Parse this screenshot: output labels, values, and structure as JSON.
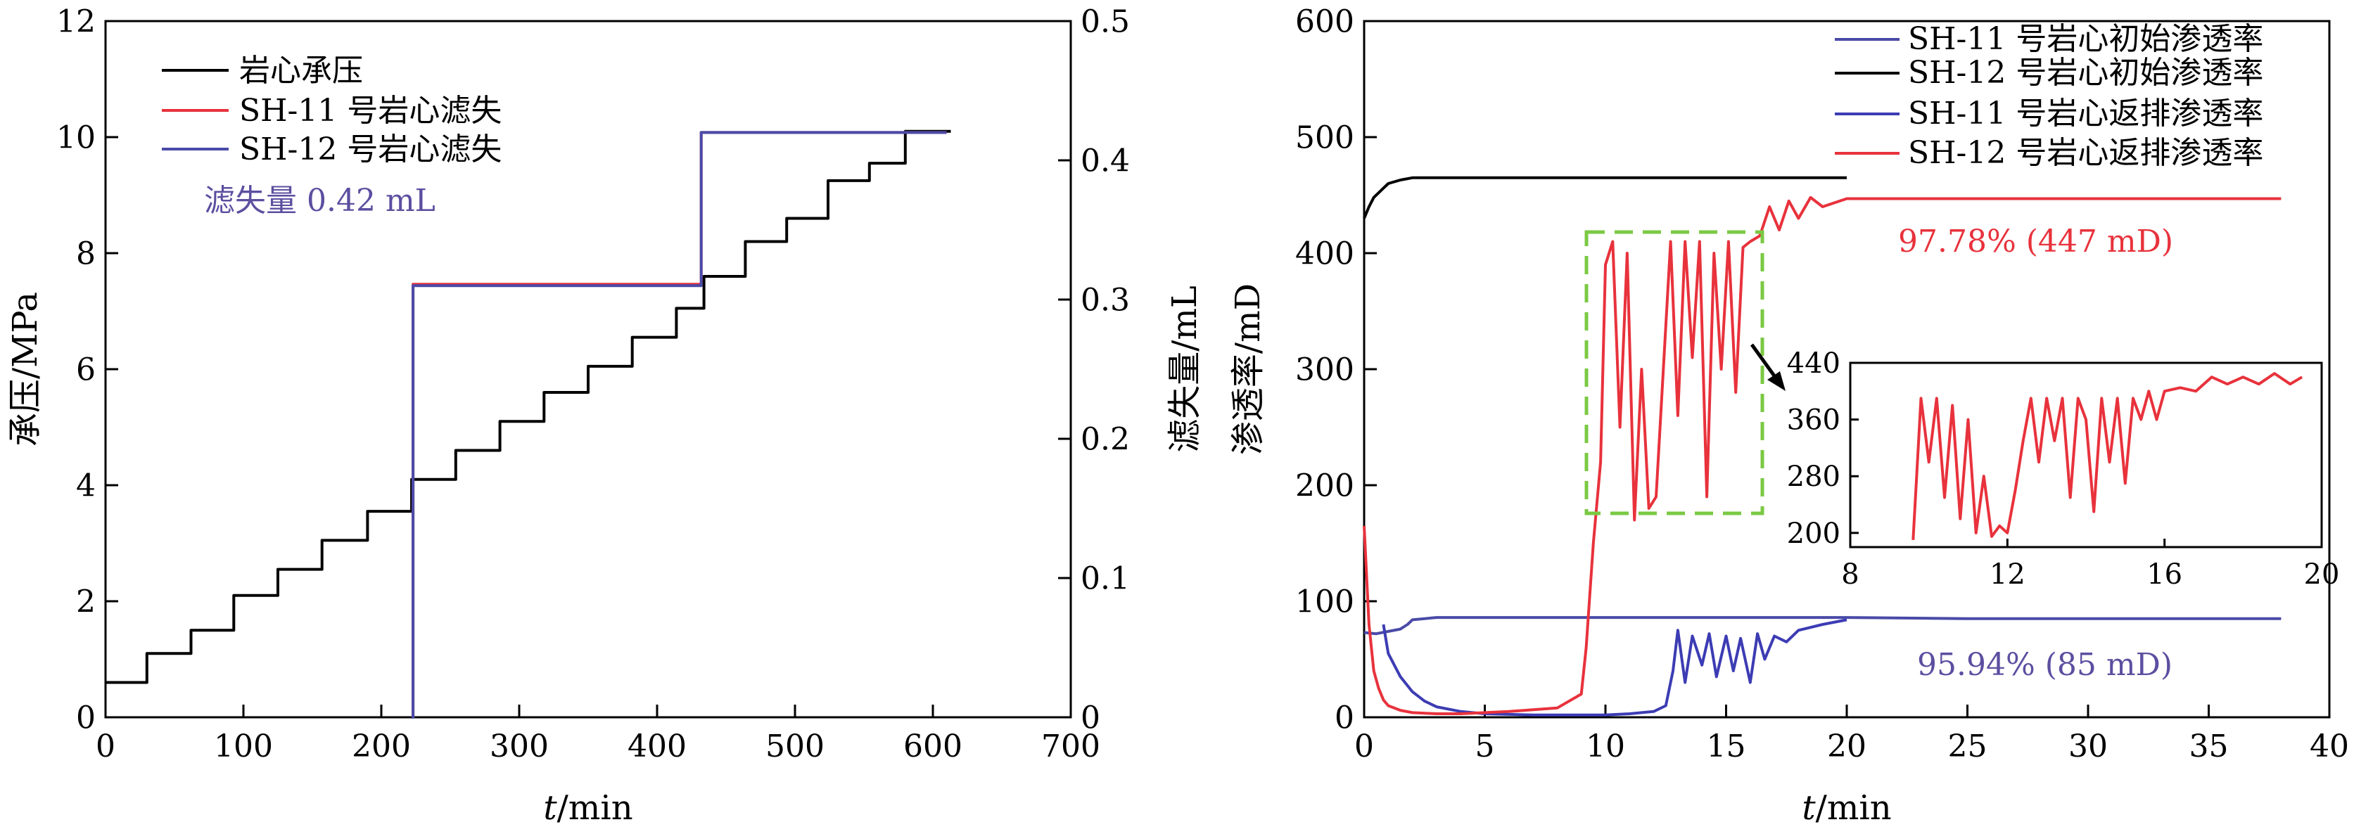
{
  "chart_data": [
    {
      "type": "line",
      "xlabel": "t/min",
      "ylabel": "承压/MPa",
      "y2label": "滤失量/mL",
      "xlim": [
        0,
        700
      ],
      "ylim": [
        0,
        12
      ],
      "y2lim": [
        0,
        0.5
      ],
      "xticks": [
        "0",
        "100",
        "200",
        "300",
        "400",
        "500",
        "600",
        "700"
      ],
      "yticks": [
        "0",
        "2",
        "4",
        "6",
        "8",
        "10",
        "12"
      ],
      "y2ticks": [
        "0",
        "0.1",
        "0.2",
        "0.3",
        "0.4",
        "0.5"
      ],
      "grid": false,
      "legend_position": "top-left",
      "annotation": "滤失量 0.42 mL",
      "annotation_color": "#5b4fa0",
      "series": [
        {
          "name": "岩心承压",
          "color": "#000000",
          "axis": "left",
          "x": [
            0,
            30,
            30,
            62,
            62,
            93,
            93,
            125,
            125,
            157,
            157,
            190,
            190,
            222,
            222,
            254,
            254,
            286,
            286,
            318,
            318,
            350,
            350,
            382,
            382,
            414,
            414,
            434,
            434,
            464,
            464,
            494,
            494,
            524,
            524,
            554,
            554,
            580,
            580,
            613
          ],
          "y": [
            0.6,
            0.6,
            1.1,
            1.1,
            1.5,
            1.5,
            2.1,
            2.1,
            2.55,
            2.55,
            3.05,
            3.05,
            3.55,
            3.55,
            4.1,
            4.1,
            4.6,
            4.6,
            5.1,
            5.1,
            5.6,
            5.6,
            6.05,
            6.05,
            6.55,
            6.55,
            7.05,
            7.05,
            7.6,
            7.6,
            8.2,
            8.2,
            8.6,
            8.6,
            9.25,
            9.25,
            9.55,
            9.55,
            10.1,
            10.1
          ]
        },
        {
          "name": "SH-11 号岩心滤失",
          "color": "#e8323c",
          "axis": "right",
          "x": [
            222,
            223,
            223,
            432,
            432,
            610
          ],
          "y": [
            0,
            0,
            0.311,
            0.311,
            0.42,
            0.42
          ]
        },
        {
          "name": "SH-12 号岩心滤失",
          "color": "#4a4aa8",
          "axis": "right",
          "x": [
            222,
            223,
            223,
            432,
            432,
            610
          ],
          "y": [
            0,
            0,
            0.31,
            0.31,
            0.42,
            0.42
          ]
        }
      ]
    },
    {
      "type": "line",
      "xlabel": "t/min",
      "ylabel": "渗透率/mD",
      "xlim": [
        0,
        40
      ],
      "ylim": [
        0,
        600
      ],
      "xticks": [
        "0",
        "5",
        "10",
        "15",
        "20",
        "25",
        "30",
        "35",
        "40"
      ],
      "yticks": [
        "0",
        "100",
        "200",
        "300",
        "400",
        "500",
        "600"
      ],
      "grid": false,
      "legend_position": "top-right",
      "annotations": [
        {
          "text": "97.78% (447 mD)",
          "color": "#e8323c"
        },
        {
          "text": "95.94% (85 mD)",
          "color": "#5b4fa0"
        }
      ],
      "series": [
        {
          "name": "SH-11 号岩心初始渗透率",
          "color": "#4a4aa8",
          "x": [
            0,
            0.5,
            1,
            1.5,
            1.8,
            2,
            3,
            4,
            6,
            10,
            15,
            20,
            25,
            30,
            38
          ],
          "y": [
            73,
            72,
            74,
            76,
            80,
            84,
            86,
            86,
            86,
            86,
            86,
            86,
            85,
            85,
            85
          ]
        },
        {
          "name": "SH-12 号岩心初始渗透率",
          "color": "#000000",
          "x": [
            0,
            0.2,
            0.4,
            0.6,
            0.8,
            1,
            1.5,
            2,
            5,
            10,
            15,
            20
          ],
          "y": [
            430,
            440,
            448,
            452,
            456,
            460,
            463,
            465,
            465,
            465,
            465,
            465
          ]
        },
        {
          "name": "SH-11 号岩心返排渗透率",
          "color": "#3c3cb4",
          "x": [
            0.8,
            1,
            1.5,
            2,
            2.5,
            3,
            4,
            5,
            7,
            9,
            10,
            11,
            12,
            12.5,
            12.8,
            13,
            13.3,
            13.6,
            14,
            14.3,
            14.6,
            15,
            15.3,
            15.6,
            16,
            16.3,
            16.6,
            17,
            17.5,
            18,
            19,
            20
          ],
          "y": [
            80,
            55,
            35,
            22,
            14,
            9,
            5,
            3,
            2,
            2,
            2,
            3,
            5,
            10,
            40,
            75,
            30,
            70,
            45,
            72,
            35,
            70,
            40,
            68,
            30,
            72,
            50,
            70,
            65,
            75,
            80,
            84
          ]
        },
        {
          "name": "SH-12 号岩心返排渗透率",
          "color": "#e8323c",
          "x": [
            0,
            0.2,
            0.4,
            0.6,
            0.8,
            1,
            1.5,
            2,
            3,
            4,
            6,
            8,
            9,
            9.2,
            9.5,
            9.8,
            10,
            10.3,
            10.6,
            10.9,
            11.2,
            11.5,
            11.8,
            12.1,
            12.4,
            12.7,
            13,
            13.3,
            13.6,
            13.9,
            14.2,
            14.5,
            14.8,
            15.1,
            15.4,
            15.7,
            16,
            16.4,
            16.8,
            17.2,
            17.6,
            18,
            18.5,
            19,
            20,
            25,
            30,
            38
          ],
          "y": [
            165,
            80,
            40,
            25,
            15,
            10,
            6,
            4,
            3,
            3,
            5,
            8,
            20,
            60,
            150,
            220,
            390,
            410,
            250,
            400,
            170,
            300,
            180,
            190,
            300,
            410,
            260,
            410,
            310,
            410,
            190,
            400,
            300,
            410,
            280,
            405,
            410,
            415,
            440,
            420,
            445,
            430,
            448,
            440,
            447,
            447,
            447,
            447
          ]
        }
      ],
      "inset": {
        "xlim": [
          8,
          20
        ],
        "ylim": [
          180,
          440
        ],
        "xticks": [
          "8",
          "12",
          "16",
          "20"
        ],
        "yticks": [
          "200",
          "280",
          "360",
          "440"
        ],
        "x": [
          9.6,
          9.8,
          10,
          10.2,
          10.4,
          10.6,
          10.8,
          11,
          11.2,
          11.4,
          11.6,
          11.8,
          12,
          12.2,
          12.4,
          12.6,
          12.8,
          13,
          13.2,
          13.4,
          13.6,
          13.8,
          14,
          14.2,
          14.4,
          14.6,
          14.8,
          15,
          15.2,
          15.4,
          15.6,
          15.8,
          16,
          16.4,
          16.8,
          17.2,
          17.6,
          18,
          18.4,
          18.8,
          19.2,
          19.5
        ],
        "y": [
          190,
          390,
          300,
          390,
          250,
          380,
          220,
          360,
          200,
          280,
          195,
          210,
          200,
          260,
          330,
          390,
          300,
          390,
          330,
          390,
          250,
          390,
          360,
          230,
          390,
          300,
          390,
          270,
          390,
          360,
          400,
          360,
          400,
          405,
          400,
          420,
          410,
          420,
          410,
          425,
          410,
          420
        ]
      }
    }
  ]
}
